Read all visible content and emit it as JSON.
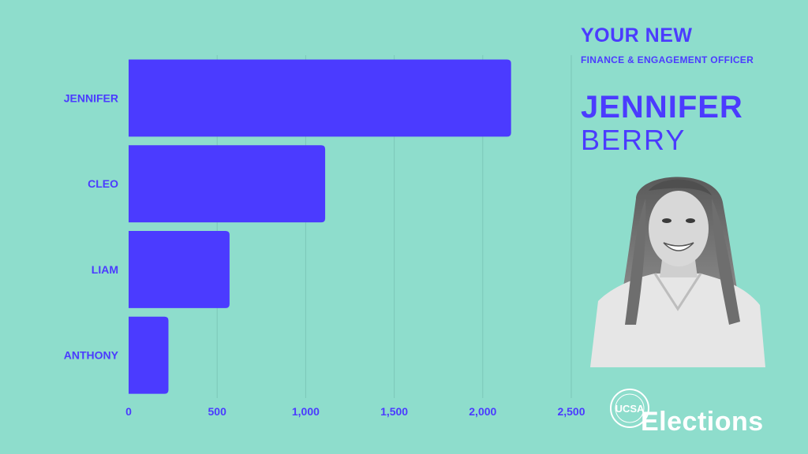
{
  "chart_data": {
    "type": "bar",
    "orientation": "horizontal",
    "categories": [
      "JENNIFER",
      "CLEO",
      "LIAM",
      "ANTHONY"
    ],
    "values": [
      2160,
      1110,
      570,
      225
    ],
    "xlim": [
      0,
      2500
    ],
    "xticks": [
      "0",
      "500",
      "1,000",
      "1,500",
      "2,000",
      "2,500"
    ],
    "grid": true,
    "bar_color": "#4B3BFF",
    "title": "",
    "xlabel": "",
    "ylabel": ""
  },
  "panel": {
    "heading": "YOUR NEW",
    "role": "FINANCE & ENGAGEMENT OFFICER",
    "first_name": "JENNIFER",
    "last_name": "BERRY"
  },
  "branding": {
    "logo_text": "Elections",
    "seal_text": "UCSA"
  },
  "colors": {
    "background": "#8EDDCC",
    "accent": "#4B3BFF",
    "logo": "#FFFFFF"
  }
}
